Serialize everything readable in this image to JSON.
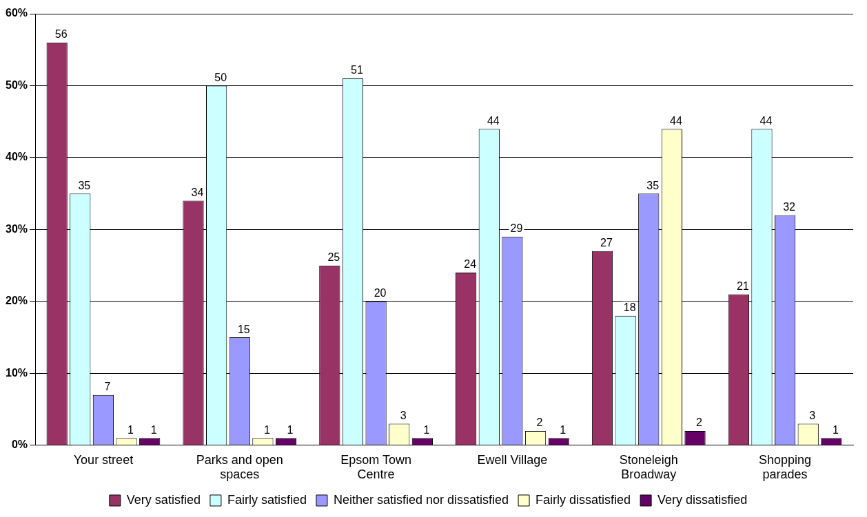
{
  "chart_data": {
    "type": "bar",
    "categories": [
      "Your street",
      "Parks and open spaces",
      "Epsom Town Centre",
      "Ewell Village",
      "Stoneleigh Broadway",
      "Shopping parades"
    ],
    "series": [
      {
        "name": "Very satisfied",
        "color": "#993366",
        "values": [
          56,
          34,
          25,
          24,
          27,
          21
        ]
      },
      {
        "name": "Fairly satisfied",
        "color": "#ccffff",
        "values": [
          35,
          50,
          51,
          44,
          18,
          44
        ]
      },
      {
        "name": "Neither satisfied nor dissatisfied",
        "color": "#9999ff",
        "values": [
          7,
          15,
          20,
          29,
          35,
          32
        ]
      },
      {
        "name": "Fairly dissatisfied",
        "color": "#ffffcc",
        "values": [
          1,
          1,
          3,
          2,
          44,
          3
        ]
      },
      {
        "name": "Very dissatisfied",
        "color": "#660066",
        "values": [
          1,
          1,
          1,
          1,
          2,
          1
        ]
      }
    ],
    "ylim": [
      0,
      60
    ],
    "yticks": [
      {
        "value": 0,
        "label": "0%"
      },
      {
        "value": 10,
        "label": "10%"
      },
      {
        "value": 20,
        "label": "20%"
      },
      {
        "value": 30,
        "label": "30%"
      },
      {
        "value": 40,
        "label": "40%"
      },
      {
        "value": 50,
        "label": "50%"
      },
      {
        "value": 60,
        "label": "60%"
      }
    ],
    "grid": "y",
    "legend": "bottom",
    "data_labels": true
  }
}
